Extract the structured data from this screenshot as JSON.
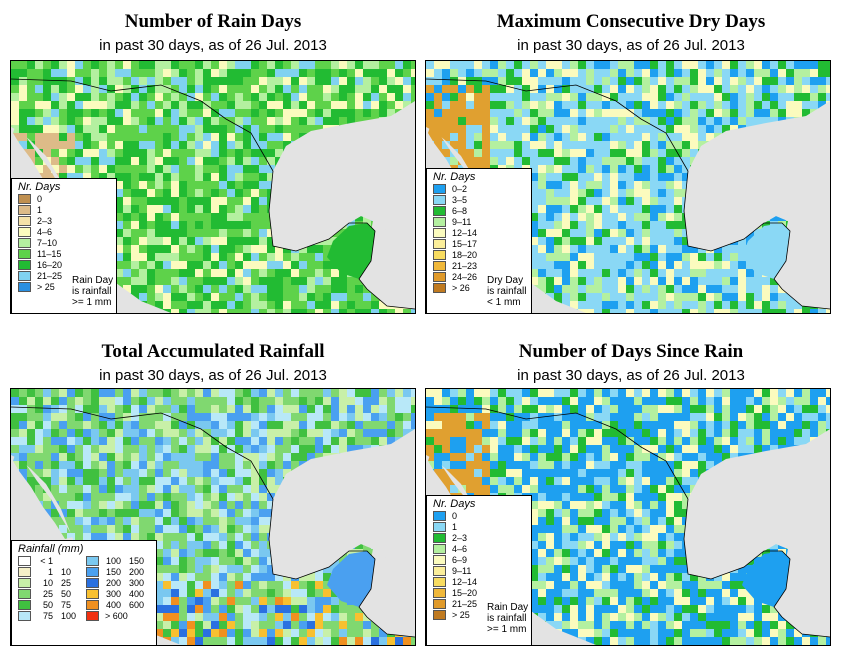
{
  "panels": [
    {
      "title": "Number of Rain Days",
      "subtitle": "in past 30 days, as of  26 Jul. 2013",
      "legend_title": "Nr. Days",
      "legend_items": [
        {
          "label": "0",
          "color": "#c09050"
        },
        {
          "label": "1",
          "color": "#ddbb88"
        },
        {
          "label": "2–3",
          "color": "#f5e2a8"
        },
        {
          "label": "4–6",
          "color": "#fbfbbe"
        },
        {
          "label": "7–10",
          "color": "#b4f0a0"
        },
        {
          "label": "11–15",
          "color": "#5ed24a"
        },
        {
          "label": "16–20",
          "color": "#22bb33"
        },
        {
          "label": "21–25",
          "color": "#80d2f0"
        },
        {
          "label": "> 25",
          "color": "#2a8fe0"
        }
      ],
      "legend_note": [
        "Rain Day",
        "is rainfall",
        ">= 1 mm"
      ],
      "palette": [
        "#22bb33",
        "#5ed24a",
        "#b4f0a0",
        "#fbfbbe",
        "#80d2f0",
        "#22bb33",
        "#5ed24a"
      ]
    },
    {
      "title": "Maximum Consecutive Dry Days",
      "subtitle": "in past 30 days, as of  26 Jul. 2013",
      "legend_title": "Nr. Days",
      "legend_items": [
        {
          "label": "0–2",
          "color": "#1ea0f0"
        },
        {
          "label": "3–5",
          "color": "#8ad8f5"
        },
        {
          "label": "6–8",
          "color": "#22bb33"
        },
        {
          "label": "9–11",
          "color": "#b4f0a0"
        },
        {
          "label": "12–14",
          "color": "#fbfbbe"
        },
        {
          "label": "15–17",
          "color": "#fbee9a"
        },
        {
          "label": "18–20",
          "color": "#f8dc60"
        },
        {
          "label": "21–23",
          "color": "#f0b83a"
        },
        {
          "label": "24–26",
          "color": "#e09a2a"
        },
        {
          "label": "> 26",
          "color": "#c07a20"
        }
      ],
      "legend_note": [
        "Dry Day",
        "is rainfall",
        "< 1 mm"
      ],
      "palette": [
        "#8ad8f5",
        "#8ad8f5",
        "#22bb33",
        "#1ea0f0",
        "#b4f0a0",
        "#fbfbbe",
        "#8ad8f5"
      ]
    },
    {
      "title": "Total Accumulated Rainfall",
      "subtitle": "in past 30 days, as of  26 Jul. 2013",
      "legend_title": "Rainfall (mm)",
      "legend_items": [
        {
          "a": "< 1",
          "b": "",
          "color": "#ffffff"
        },
        {
          "a": "1",
          "b": "10",
          "color": "#f5f0c8"
        },
        {
          "a": "10",
          "b": "25",
          "color": "#c8f0a8"
        },
        {
          "a": "25",
          "b": "50",
          "color": "#80d870"
        },
        {
          "a": "50",
          "b": "75",
          "color": "#40c040"
        },
        {
          "a": "75",
          "b": "100",
          "color": "#b8e8f8"
        },
        {
          "a": "100",
          "b": "150",
          "color": "#7ac8f0"
        },
        {
          "a": "150",
          "b": "200",
          "color": "#4aa0f0"
        },
        {
          "a": "200",
          "b": "300",
          "color": "#2a70e0"
        },
        {
          "a": "300",
          "b": "400",
          "color": "#f8c030"
        },
        {
          "a": "400",
          "b": "600",
          "color": "#f09020"
        },
        {
          "a": "> 600",
          "b": "",
          "color": "#f03010"
        }
      ],
      "palette": [
        "#80d870",
        "#c8f0a8",
        "#40c040",
        "#b8e8f8",
        "#7ac8f0",
        "#80d870",
        "#4aa0f0"
      ]
    },
    {
      "title": "Number of Days Since Rain",
      "subtitle": "in past 30 days, as of  26 Jul. 2013",
      "legend_title": "Nr. Days",
      "legend_items": [
        {
          "label": "0",
          "color": "#1ea0f0"
        },
        {
          "label": "1",
          "color": "#8ad8f5"
        },
        {
          "label": "2–3",
          "color": "#22bb33"
        },
        {
          "label": "4–6",
          "color": "#b4f0a0"
        },
        {
          "label": "6–9",
          "color": "#fbfbbe"
        },
        {
          "label": "9–11",
          "color": "#fbee9a"
        },
        {
          "label": "12–14",
          "color": "#f8dc60"
        },
        {
          "label": "15–20",
          "color": "#f0b83a"
        },
        {
          "label": "21–25",
          "color": "#e09a2a"
        },
        {
          "label": "> 25",
          "color": "#c07a20"
        }
      ],
      "legend_note": [
        "Rain Day",
        "is rainfall",
        ">= 1 mm"
      ],
      "palette": [
        "#1ea0f0",
        "#1ea0f0",
        "#8ad8f5",
        "#22bb33",
        "#fbfbbe",
        "#1ea0f0",
        "#b4f0a0"
      ]
    }
  ],
  "colors": {
    "ocean": "#e3e3e3",
    "dry_coast": "#e0a030"
  }
}
